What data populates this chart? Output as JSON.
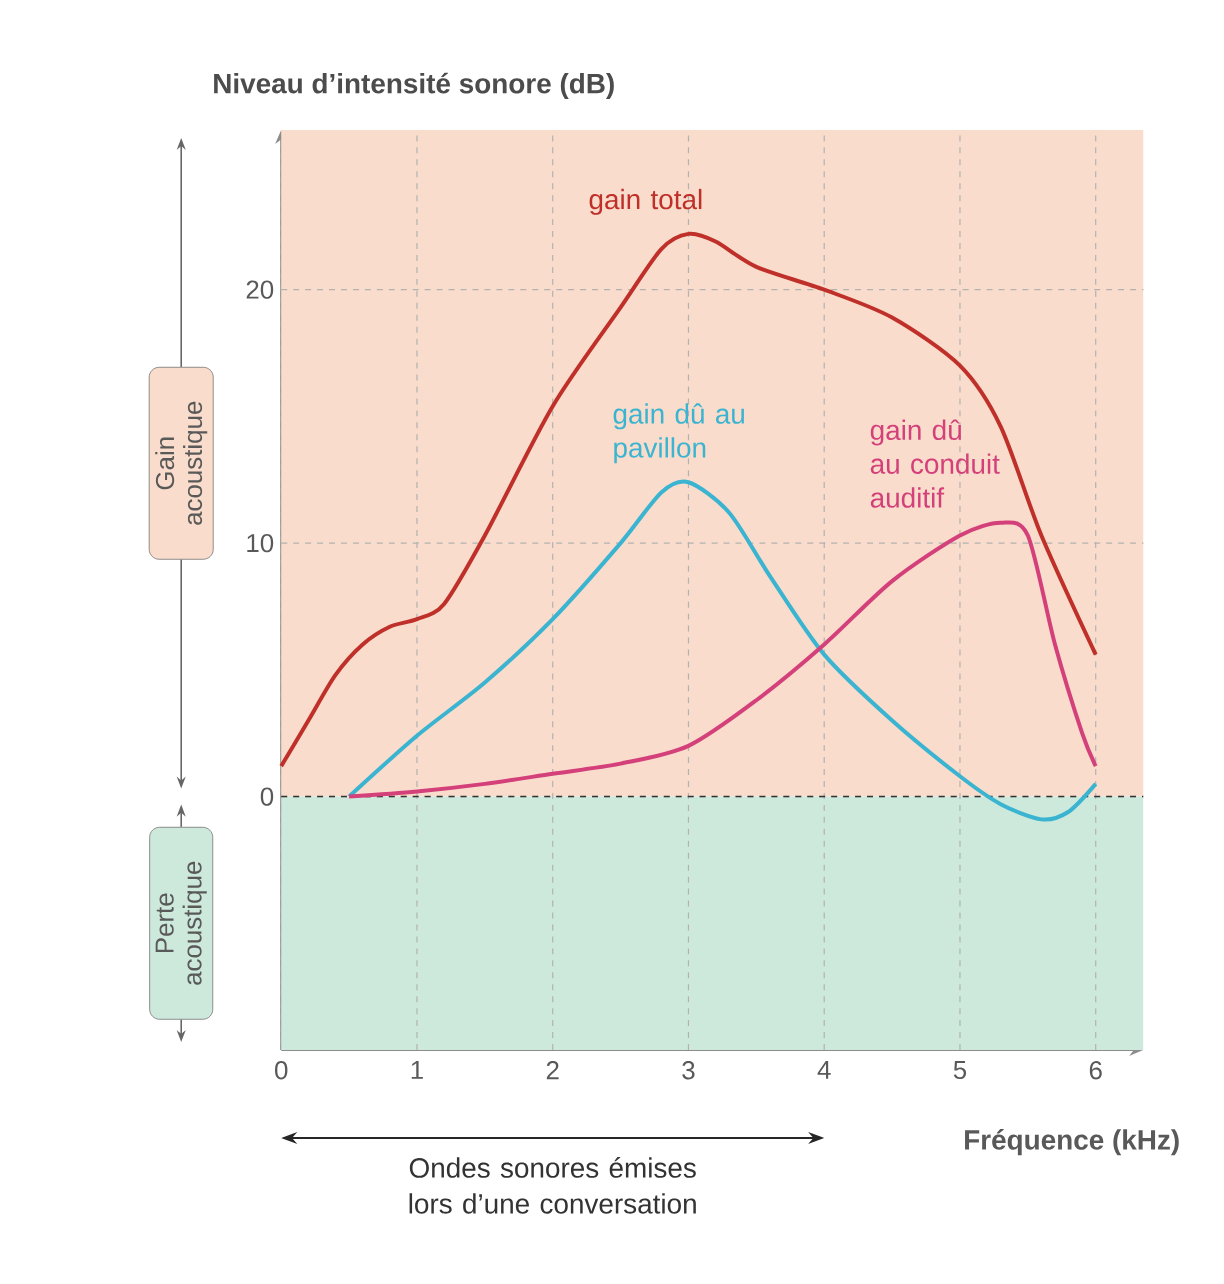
{
  "chart_data": {
    "type": "line",
    "ylabel": "Niveau d’intensité sonore (dB)",
    "xlabel": "Fréquence (kHz)",
    "xlim": [
      0,
      6.35
    ],
    "ylim": [
      -10,
      26.3
    ],
    "xticks": [
      0,
      1,
      2,
      3,
      4,
      5,
      6
    ],
    "yticks": [
      0,
      10,
      20
    ],
    "grid": true,
    "marker": "none",
    "line_style": "solid",
    "series": [
      {
        "name": "gain total",
        "color": "#c0302a",
        "x": [
          0,
          0.2,
          0.4,
          0.6,
          0.8,
          1.0,
          1.2,
          1.5,
          2.0,
          2.5,
          2.8,
          3.0,
          3.2,
          3.5,
          4.0,
          4.5,
          5.0,
          5.3,
          5.6,
          6.0
        ],
        "values": [
          1.2,
          3,
          4.8,
          6.0,
          6.7,
          7.0,
          7.6,
          10.3,
          15.4,
          19.3,
          21.6,
          22.2,
          21.9,
          20.9,
          20,
          18.9,
          17,
          14.6,
          10.3,
          5.6
        ]
      },
      {
        "name": "gain dû au pavillon",
        "color": "#3ab4d0",
        "x": [
          0.5,
          1.0,
          1.5,
          2.0,
          2.5,
          2.8,
          3.0,
          3.3,
          3.6,
          4.0,
          4.5,
          5.0,
          5.3,
          5.6,
          5.8,
          6.0
        ],
        "values": [
          0,
          2.4,
          4.5,
          7.0,
          10.0,
          12.0,
          12.4,
          11.2,
          8.7,
          5.6,
          3.0,
          0.8,
          -0.3,
          -0.9,
          -0.6,
          0.5
        ]
      },
      {
        "name": "gain dû au conduit auditif",
        "color": "#d4407a",
        "x": [
          0.5,
          1.0,
          1.5,
          2.0,
          2.5,
          3.0,
          3.5,
          4.0,
          4.5,
          5.0,
          5.3,
          5.5,
          5.7,
          5.9,
          6.0
        ],
        "values": [
          0,
          0.2,
          0.5,
          0.9,
          1.3,
          2.0,
          3.8,
          6.0,
          8.5,
          10.3,
          10.8,
          10.3,
          6.0,
          2.5,
          1.2
        ]
      }
    ],
    "bands": [
      {
        "axis": "y",
        "from": 0,
        "to": 26.3,
        "label": "Gain acoustique",
        "color": "#f9dccb"
      },
      {
        "axis": "y",
        "from": -10,
        "to": 0,
        "label": "Perte acoustique",
        "color": "#cde9dc"
      }
    ],
    "ref_lines": [
      {
        "axis": "y",
        "value": 0,
        "line_style": "dashed",
        "color": "#333333"
      }
    ],
    "annotations": [
      "Ondes sonores émises lors d’une conversation"
    ]
  }
}
